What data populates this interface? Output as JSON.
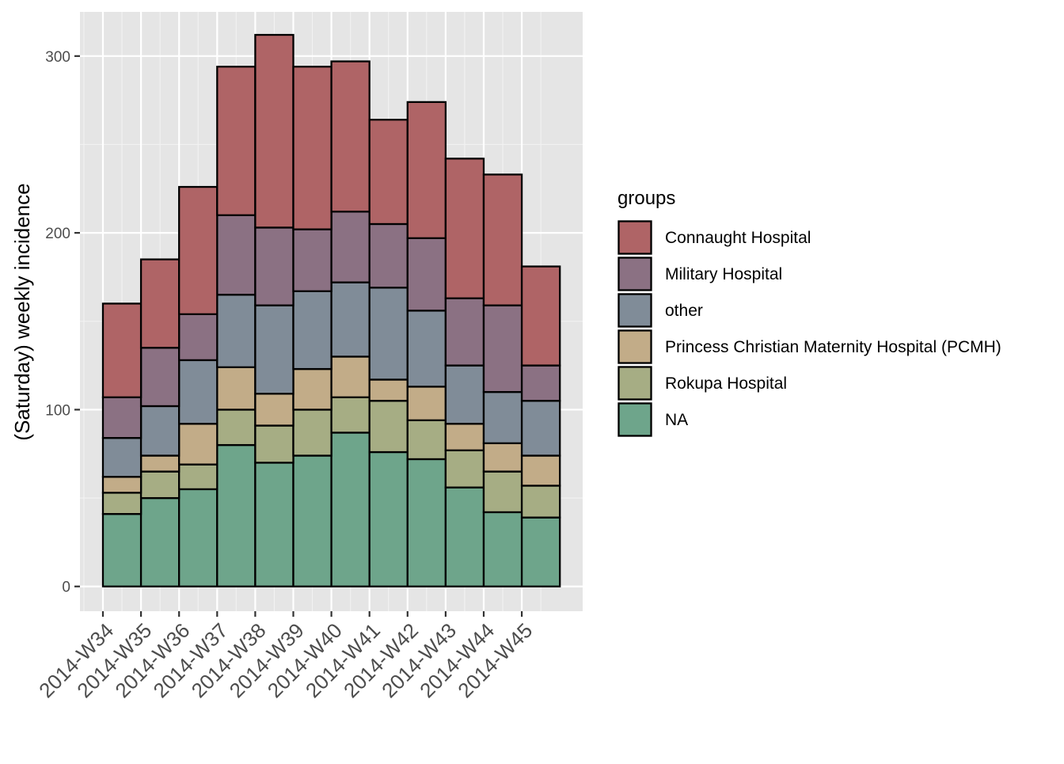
{
  "chart_data": {
    "type": "bar",
    "stacked": true,
    "title": "",
    "xlabel": "",
    "ylabel": "(Saturday) weekly incidence",
    "ylim": [
      -14,
      325
    ],
    "yticks": [
      0,
      100,
      200,
      300
    ],
    "grid": true,
    "legend_title": "groups",
    "legend_position": "right",
    "categories": [
      "2014-W34",
      "2014-W35",
      "2014-W36",
      "2014-W37",
      "2014-W38",
      "2014-W39",
      "2014-W40",
      "2014-W41",
      "2014-W42",
      "2014-W43",
      "2014-W44",
      "2014-W45"
    ],
    "bar_count": 12,
    "series": [
      {
        "name": "NA",
        "color": "#6ea58b",
        "values": [
          41,
          50,
          55,
          80,
          70,
          74,
          87,
          76,
          72,
          56,
          42,
          39
        ]
      },
      {
        "name": "Rokupa Hospital",
        "color": "#a6ad84",
        "values": [
          12,
          15,
          14,
          20,
          21,
          26,
          20,
          29,
          22,
          21,
          23,
          18
        ]
      },
      {
        "name": "Princess Christian Maternity Hospital (PCMH)",
        "color": "#c2ac88",
        "values": [
          9,
          9,
          23,
          24,
          18,
          23,
          23,
          12,
          19,
          15,
          16,
          17
        ]
      },
      {
        "name": "other",
        "color": "#808c98",
        "values": [
          22,
          28,
          36,
          41,
          50,
          44,
          42,
          52,
          43,
          33,
          29,
          31
        ]
      },
      {
        "name": "Military Hospital",
        "color": "#8b7183",
        "values": [
          23,
          33,
          26,
          45,
          44,
          35,
          40,
          36,
          41,
          38,
          49,
          20
        ]
      },
      {
        "name": "Connaught Hospital",
        "color": "#af6466",
        "values": [
          53,
          50,
          72,
          84,
          109,
          92,
          85,
          59,
          77,
          79,
          74,
          56
        ]
      }
    ],
    "legend_order": [
      "Connaught Hospital",
      "Military Hospital",
      "other",
      "Princess Christian Maternity Hospital (PCMH)",
      "Rokupa Hospital",
      "NA"
    ]
  }
}
